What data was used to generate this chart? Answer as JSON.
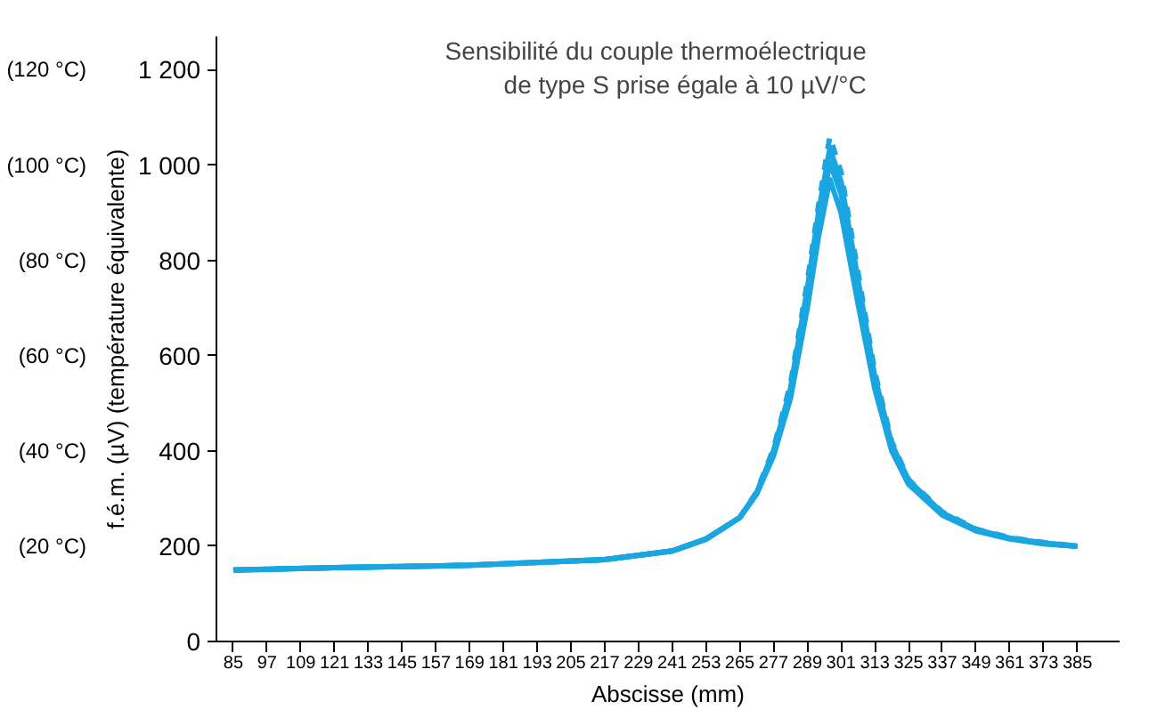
{
  "chart_data": {
    "type": "line",
    "xlabel": "Abscisse (mm)",
    "ylabel": "f.é.m. (µV) (température équivalente)",
    "annotations": [
      "Sensibilité du couple thermoélectrique\nde type S prise égale à 10 µV/°C"
    ],
    "y2lim": [
      0,
      127
    ],
    "y2ticks": [
      {
        "value": 20,
        "label": "(20 °C)"
      },
      {
        "value": 40,
        "label": "(40 °C)"
      },
      {
        "value": 60,
        "label": "(60 °C)"
      },
      {
        "value": 80,
        "label": "(80 °C)"
      },
      {
        "value": 100,
        "label": "(100 °C)"
      },
      {
        "value": 120,
        "label": "(120 °C)"
      }
    ],
    "x": [
      85,
      121,
      169,
      217,
      241,
      253,
      265,
      271,
      277,
      283,
      289,
      293,
      297,
      301,
      307,
      313,
      319,
      325,
      337,
      349,
      361,
      373,
      385
    ],
    "series": [
      {
        "color": "#1aa6e0",
        "values": [
          150,
          155,
          160,
          172,
          190,
          215,
          260,
          310,
          390,
          510,
          700,
          850,
          970,
          900,
          710,
          530,
          400,
          330,
          265,
          232,
          215,
          205,
          200
        ]
      },
      {
        "color": "#1aa6e0",
        "values": [
          150,
          155,
          160,
          172,
          190,
          215,
          260,
          310,
          395,
          520,
          720,
          880,
          1005,
          940,
          740,
          545,
          410,
          335,
          268,
          234,
          216,
          206,
          200
        ]
      },
      {
        "color": "#1aa6e0",
        "values": [
          150,
          155,
          160,
          172,
          190,
          215,
          260,
          312,
          400,
          530,
          740,
          900,
          1035,
          965,
          760,
          555,
          415,
          338,
          270,
          235,
          217,
          207,
          200
        ]
      },
      {
        "color": "#1aa6e0",
        "line_style": "dashed",
        "values": [
          150,
          155,
          160,
          172,
          190,
          215,
          260,
          314,
          405,
          540,
          755,
          915,
          1060,
          985,
          775,
          565,
          420,
          340,
          272,
          236,
          218,
          208,
          200
        ]
      }
    ],
    "xlim": [
      79,
      400
    ],
    "ylim": [
      0,
      1270
    ],
    "xticks": [
      85,
      97,
      109,
      121,
      133,
      145,
      157,
      169,
      181,
      193,
      205,
      217,
      229,
      241,
      253,
      265,
      277,
      289,
      301,
      313,
      325,
      337,
      349,
      361,
      373,
      385
    ],
    "yticks": [
      0,
      200,
      400,
      600,
      800,
      {
        "value": 1000,
        "label": "1 000"
      },
      {
        "value": 1200,
        "label": "1 200"
      }
    ],
    "grid": false,
    "marker": "none",
    "line_style": "solid"
  }
}
